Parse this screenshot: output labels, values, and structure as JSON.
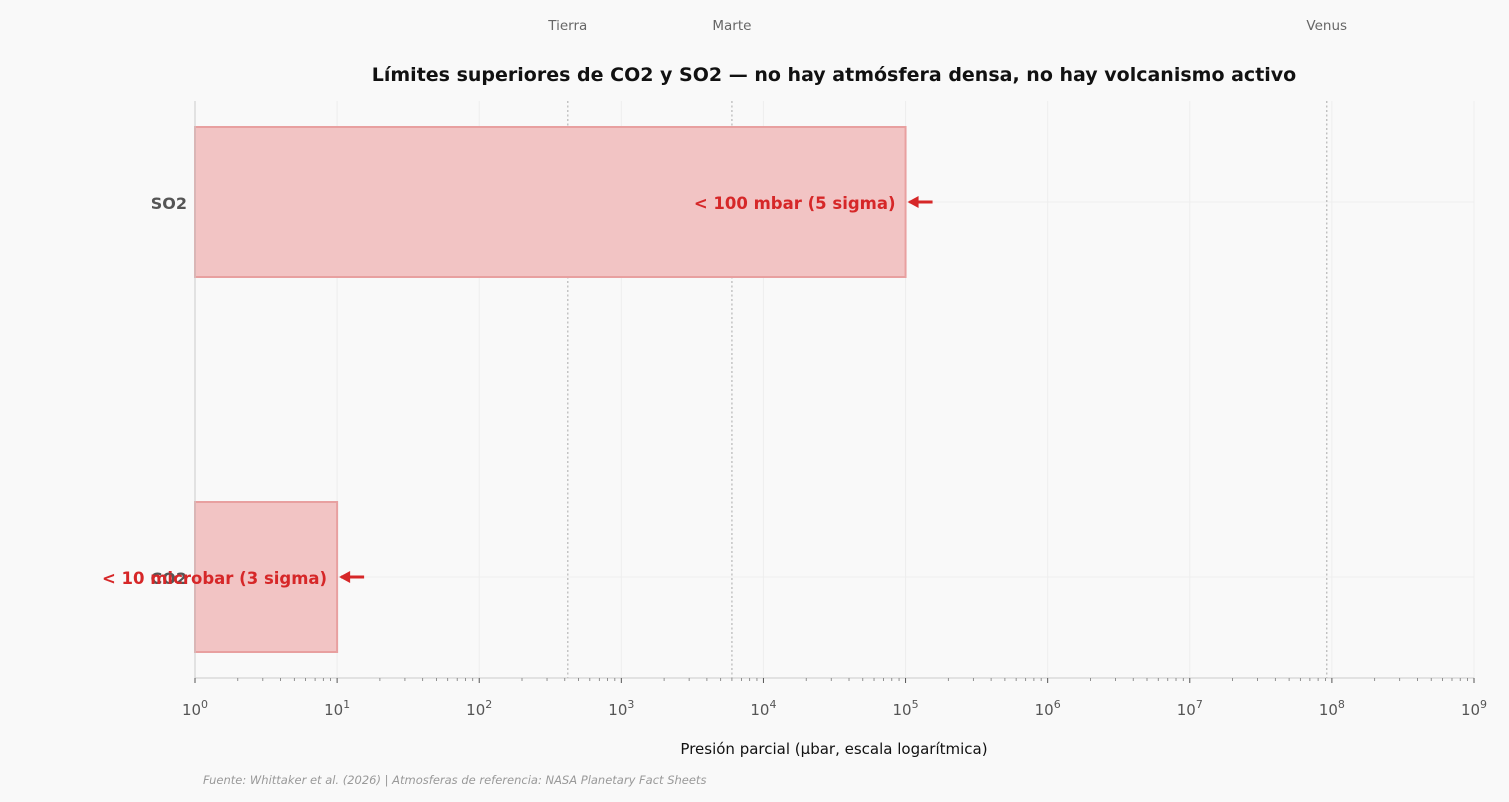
{
  "chart_data": {
    "type": "bar",
    "orientation": "horizontal",
    "title": "Límites superiores de CO2 y SO2 — no hay atmósfera densa, no hay volcanismo activo",
    "xlabel": "Presión parcial (µbar, escala logarítmica)",
    "ylabel": "",
    "x_scale": "log",
    "xlim": [
      1,
      1000000000
    ],
    "x_tick_labels": [
      "10^0",
      "10^1",
      "10^2",
      "10^3",
      "10^4",
      "10^5",
      "10^6",
      "10^7",
      "10^8",
      "10^9"
    ],
    "categories": [
      "CO2",
      "SO2"
    ],
    "values": [
      10,
      100000
    ],
    "bar_labels": [
      "< 10 microbar (3 sigma)",
      "< 100 mbar (5 sigma)"
    ],
    "reference_lines": [
      {
        "label": "Tierra",
        "value": 420
      },
      {
        "label": "Marte",
        "value": 6000
      },
      {
        "label": "Venus",
        "value": 92000000
      }
    ],
    "grid": true,
    "colors": {
      "bar_fill": "#f2c4c4",
      "bar_edge": "#e8a0a0",
      "label": "#d62728",
      "reference_line": "#bbbbbb",
      "reference_text": "#666666",
      "axis_text": "#555555",
      "source_text": "#999999",
      "background": "#f9f9f9"
    }
  },
  "source_note": "Fuente: Whittaker et al. (2026) | Atmosferas de referencia: NASA Planetary Fact Sheets"
}
